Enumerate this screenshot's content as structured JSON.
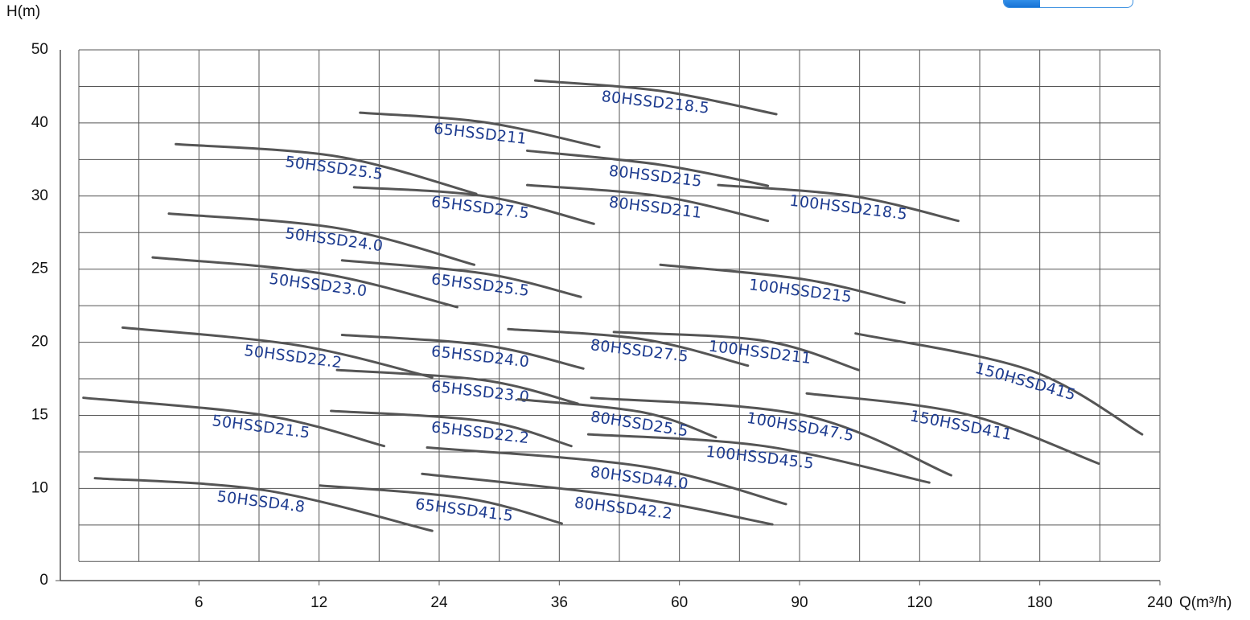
{
  "chart_data": {
    "type": "line",
    "x_label": "Q(m³/h)",
    "y_label": "H(m)",
    "xlim": [
      0,
      240
    ],
    "ylim": [
      0,
      50
    ],
    "xticks": [
      6,
      12,
      24,
      36,
      60,
      90,
      120,
      180,
      240
    ],
    "yticks": [
      0,
      10,
      15,
      20,
      25,
      30,
      40,
      50
    ],
    "grid": true,
    "line_color": "#555555",
    "label_color": "#1d3b8f",
    "series": [
      {
        "name": "80HSSD218.5",
        "x": [
          33.6,
          56.0,
          84.2
        ],
        "values": [
          45.8,
          44.4,
          41.2
        ]
      },
      {
        "name": "65HSSD211",
        "x": [
          16.1,
          28.5,
          44.0
        ],
        "values": [
          41.4,
          40.1,
          36.7
        ]
      },
      {
        "name": "50HSSD25.5",
        "x": [
          5.0,
          13.9,
          27.7
        ],
        "values": [
          37.1,
          35.4,
          30.3
        ]
      },
      {
        "name": "80HSSD215",
        "x": [
          32.8,
          56.0,
          82.1
        ],
        "values": [
          36.2,
          34.3,
          31.4
        ]
      },
      {
        "name": "65HSSD27.5",
        "x": [
          15.5,
          28.5,
          42.9
        ],
        "values": [
          31.2,
          30.0,
          28.1
        ]
      },
      {
        "name": "80HSSD211",
        "x": [
          32.8,
          56.0,
          82.1
        ],
        "values": [
          31.5,
          30.0,
          28.3
        ]
      },
      {
        "name": "100HSSD218.5",
        "x": [
          69.7,
          103.2,
          139.3
        ],
        "values": [
          31.5,
          30.0,
          28.3
        ]
      },
      {
        "name": "50HSSD24.0",
        "x": [
          4.7,
          13.9,
          27.5
        ],
        "values": [
          28.8,
          27.8,
          25.3
        ]
      },
      {
        "name": "50HSSD23.0",
        "x": [
          4.0,
          12.3,
          25.8
        ],
        "values": [
          25.8,
          24.7,
          22.4
        ]
      },
      {
        "name": "65HSSD25.5",
        "x": [
          14.3,
          28.5,
          40.3
        ],
        "values": [
          25.6,
          24.7,
          23.1
        ]
      },
      {
        "name": "100HSSD215",
        "x": [
          56.2,
          91.2,
          116.2
        ],
        "values": [
          25.3,
          24.3,
          22.7
        ]
      },
      {
        "name": "50HSSD22.2",
        "x": [
          2.7,
          10.9,
          23.3
        ],
        "values": [
          21.0,
          19.8,
          17.6
        ]
      },
      {
        "name": "65HSSD24.0",
        "x": [
          14.3,
          28.5,
          40.8
        ],
        "values": [
          20.5,
          19.8,
          18.2
        ]
      },
      {
        "name": "80HSSD27.5",
        "x": [
          30.9,
          52.8,
          77.1
        ],
        "values": [
          20.9,
          20.2,
          18.4
        ]
      },
      {
        "name": "100HSSD211",
        "x": [
          46.9,
          81.1,
          104.8
        ],
        "values": [
          20.7,
          20.1,
          18.1
        ]
      },
      {
        "name": "150HSSD415",
        "x": [
          104.0,
          174.8,
          231.1
        ],
        "values": [
          20.6,
          18.1,
          13.7
        ]
      },
      {
        "name": "65HSSD23.0",
        "x": [
          13.8,
          28.5,
          39.7
        ],
        "values": [
          18.1,
          17.4,
          15.8
        ]
      },
      {
        "name": "80HSSD25.5",
        "x": [
          31.9,
          52.8,
          69.1
        ],
        "values": [
          16.1,
          15.2,
          13.5
        ]
      },
      {
        "name": "100HSSD47.5",
        "x": [
          42.4,
          91.2,
          135.7
        ],
        "values": [
          16.2,
          15.0,
          10.9
        ]
      },
      {
        "name": "150HSSD411",
        "x": [
          91.8,
          142.6,
          209.4
        ],
        "values": [
          16.5,
          15.1,
          11.7
        ]
      },
      {
        "name": "50HSSD21.5",
        "x": [
          1.0,
          9.3,
          18.5
        ],
        "values": [
          16.2,
          15.0,
          12.9
        ]
      },
      {
        "name": "65HSSD22.2",
        "x": [
          13.2,
          28.5,
          38.4
        ],
        "values": [
          15.3,
          14.6,
          12.9
        ]
      },
      {
        "name": "100HSSD45.5",
        "x": [
          41.8,
          81.1,
          124.8
        ],
        "values": [
          13.7,
          12.9,
          10.4
        ]
      },
      {
        "name": "80HSSD44.0",
        "x": [
          22.8,
          52.8,
          86.6
        ],
        "values": [
          12.8,
          11.5,
          8.3
        ]
      },
      {
        "name": "80HSSD42.2",
        "x": [
          22.3,
          49.6,
          83.2
        ],
        "values": [
          11.0,
          9.1,
          6.1
        ]
      },
      {
        "name": "50HSSD4.8",
        "x": [
          1.5,
          9.3,
          23.3
        ],
        "values": [
          10.7,
          9.8,
          5.4
        ]
      },
      {
        "name": "65HSSD41.5",
        "x": [
          12.1,
          26.9,
          36.5
        ],
        "values": [
          10.2,
          8.9,
          6.2
        ]
      }
    ]
  }
}
